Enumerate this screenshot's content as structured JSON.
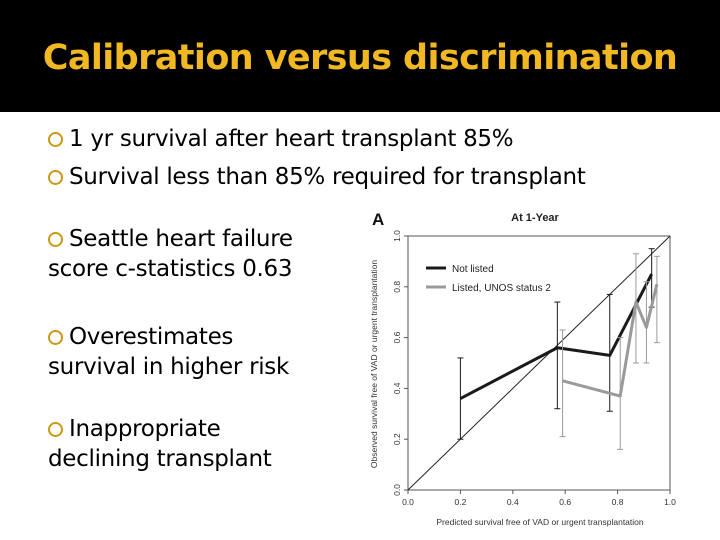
{
  "slide": {
    "title": "Calibration versus discrimination",
    "colors": {
      "title_bg": "#000000",
      "title_text": "#f2b824",
      "bullet_marker": "#c99a12"
    },
    "bullets": [
      {
        "lines": [
          "1 yr survival after heart transplant 85%"
        ]
      },
      {
        "lines": [
          "Survival less than 85% required for transplant"
        ]
      },
      {
        "lines": [
          "Seattle heart failure",
          "score c-statistics 0.63"
        ]
      },
      {
        "lines": [
          "Overestimates",
          "survival in higher risk"
        ]
      },
      {
        "lines": [
          "Inappropriate",
          "declining transplant"
        ]
      }
    ]
  },
  "chart_data": {
    "type": "line",
    "panel_label": "A",
    "title": "At 1-Year",
    "xlabel": "Predicted survival free of VAD or urgent transplantation",
    "ylabel": "Observed survival free of VAD or urgent transplantation",
    "xlim": [
      0,
      1
    ],
    "ylim": [
      0,
      1
    ],
    "x_ticks": [
      "0.0",
      "0.2",
      "0.4",
      "0.6",
      "0.8",
      "1.0"
    ],
    "y_ticks": [
      "0.0",
      "0.2",
      "0.4",
      "0.6",
      "0.8",
      "1.0"
    ],
    "legend_position": "top-left",
    "reference_line": {
      "from": [
        0,
        0
      ],
      "to": [
        1,
        1
      ]
    },
    "series": [
      {
        "name": "Not listed",
        "color": "#1a1a1a",
        "points": [
          {
            "x": 0.2,
            "y": 0.36,
            "lo": 0.2,
            "hi": 0.52
          },
          {
            "x": 0.57,
            "y": 0.56,
            "lo": 0.32,
            "hi": 0.74
          },
          {
            "x": 0.77,
            "y": 0.53,
            "lo": 0.31,
            "hi": 0.77
          },
          {
            "x": 0.93,
            "y": 0.85,
            "lo": 0.72,
            "hi": 0.95
          }
        ]
      },
      {
        "name": "Listed, UNOS status 2",
        "color": "#9a9a9a",
        "points": [
          {
            "x": 0.59,
            "y": 0.43,
            "lo": 0.21,
            "hi": 0.63
          },
          {
            "x": 0.81,
            "y": 0.37,
            "lo": 0.16,
            "hi": 0.6
          },
          {
            "x": 0.87,
            "y": 0.74,
            "lo": 0.5,
            "hi": 0.93
          },
          {
            "x": 0.91,
            "y": 0.64,
            "lo": 0.5,
            "hi": 0.82
          },
          {
            "x": 0.95,
            "y": 0.81,
            "lo": 0.58,
            "hi": 0.92
          }
        ]
      }
    ]
  }
}
